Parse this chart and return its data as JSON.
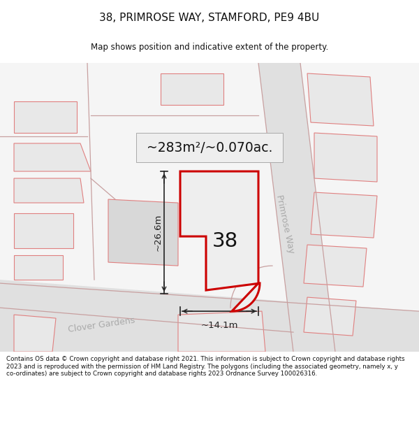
{
  "title_line1": "38, PRIMROSE WAY, STAMFORD, PE9 4BU",
  "title_line2": "Map shows position and indicative extent of the property.",
  "area_label": "~283m²/~0.070ac.",
  "property_number": "38",
  "dim_width": "~14.1m",
  "dim_height": "~26.6m",
  "street_label": "Primrose Way",
  "street_label2": "Clover Gardens",
  "footer_text": "Contains OS data © Crown copyright and database right 2021. This information is subject to Crown copyright and database rights 2023 and is reproduced with the permission of HM Land Registry. The polygons (including the associated geometry, namely x, y co-ordinates) are subject to Crown copyright and database rights 2023 Ordnance Survey 100026316.",
  "bg_color": "#ffffff",
  "map_bg": "#f5f5f5",
  "plot_fill": "#eeeeee",
  "plot_border": "#cc0000",
  "neighbor_border": "#e08080",
  "neighbor_fill": "#e8e8e8",
  "road_color": "#dddddd",
  "text_color": "#111111",
  "area_box_fill": "#eeeeee",
  "area_box_border": "#aaaaaa",
  "dim_line_color": "#222222",
  "street_color": "#aaaaaa",
  "road_line_color": "#c8a0a0"
}
